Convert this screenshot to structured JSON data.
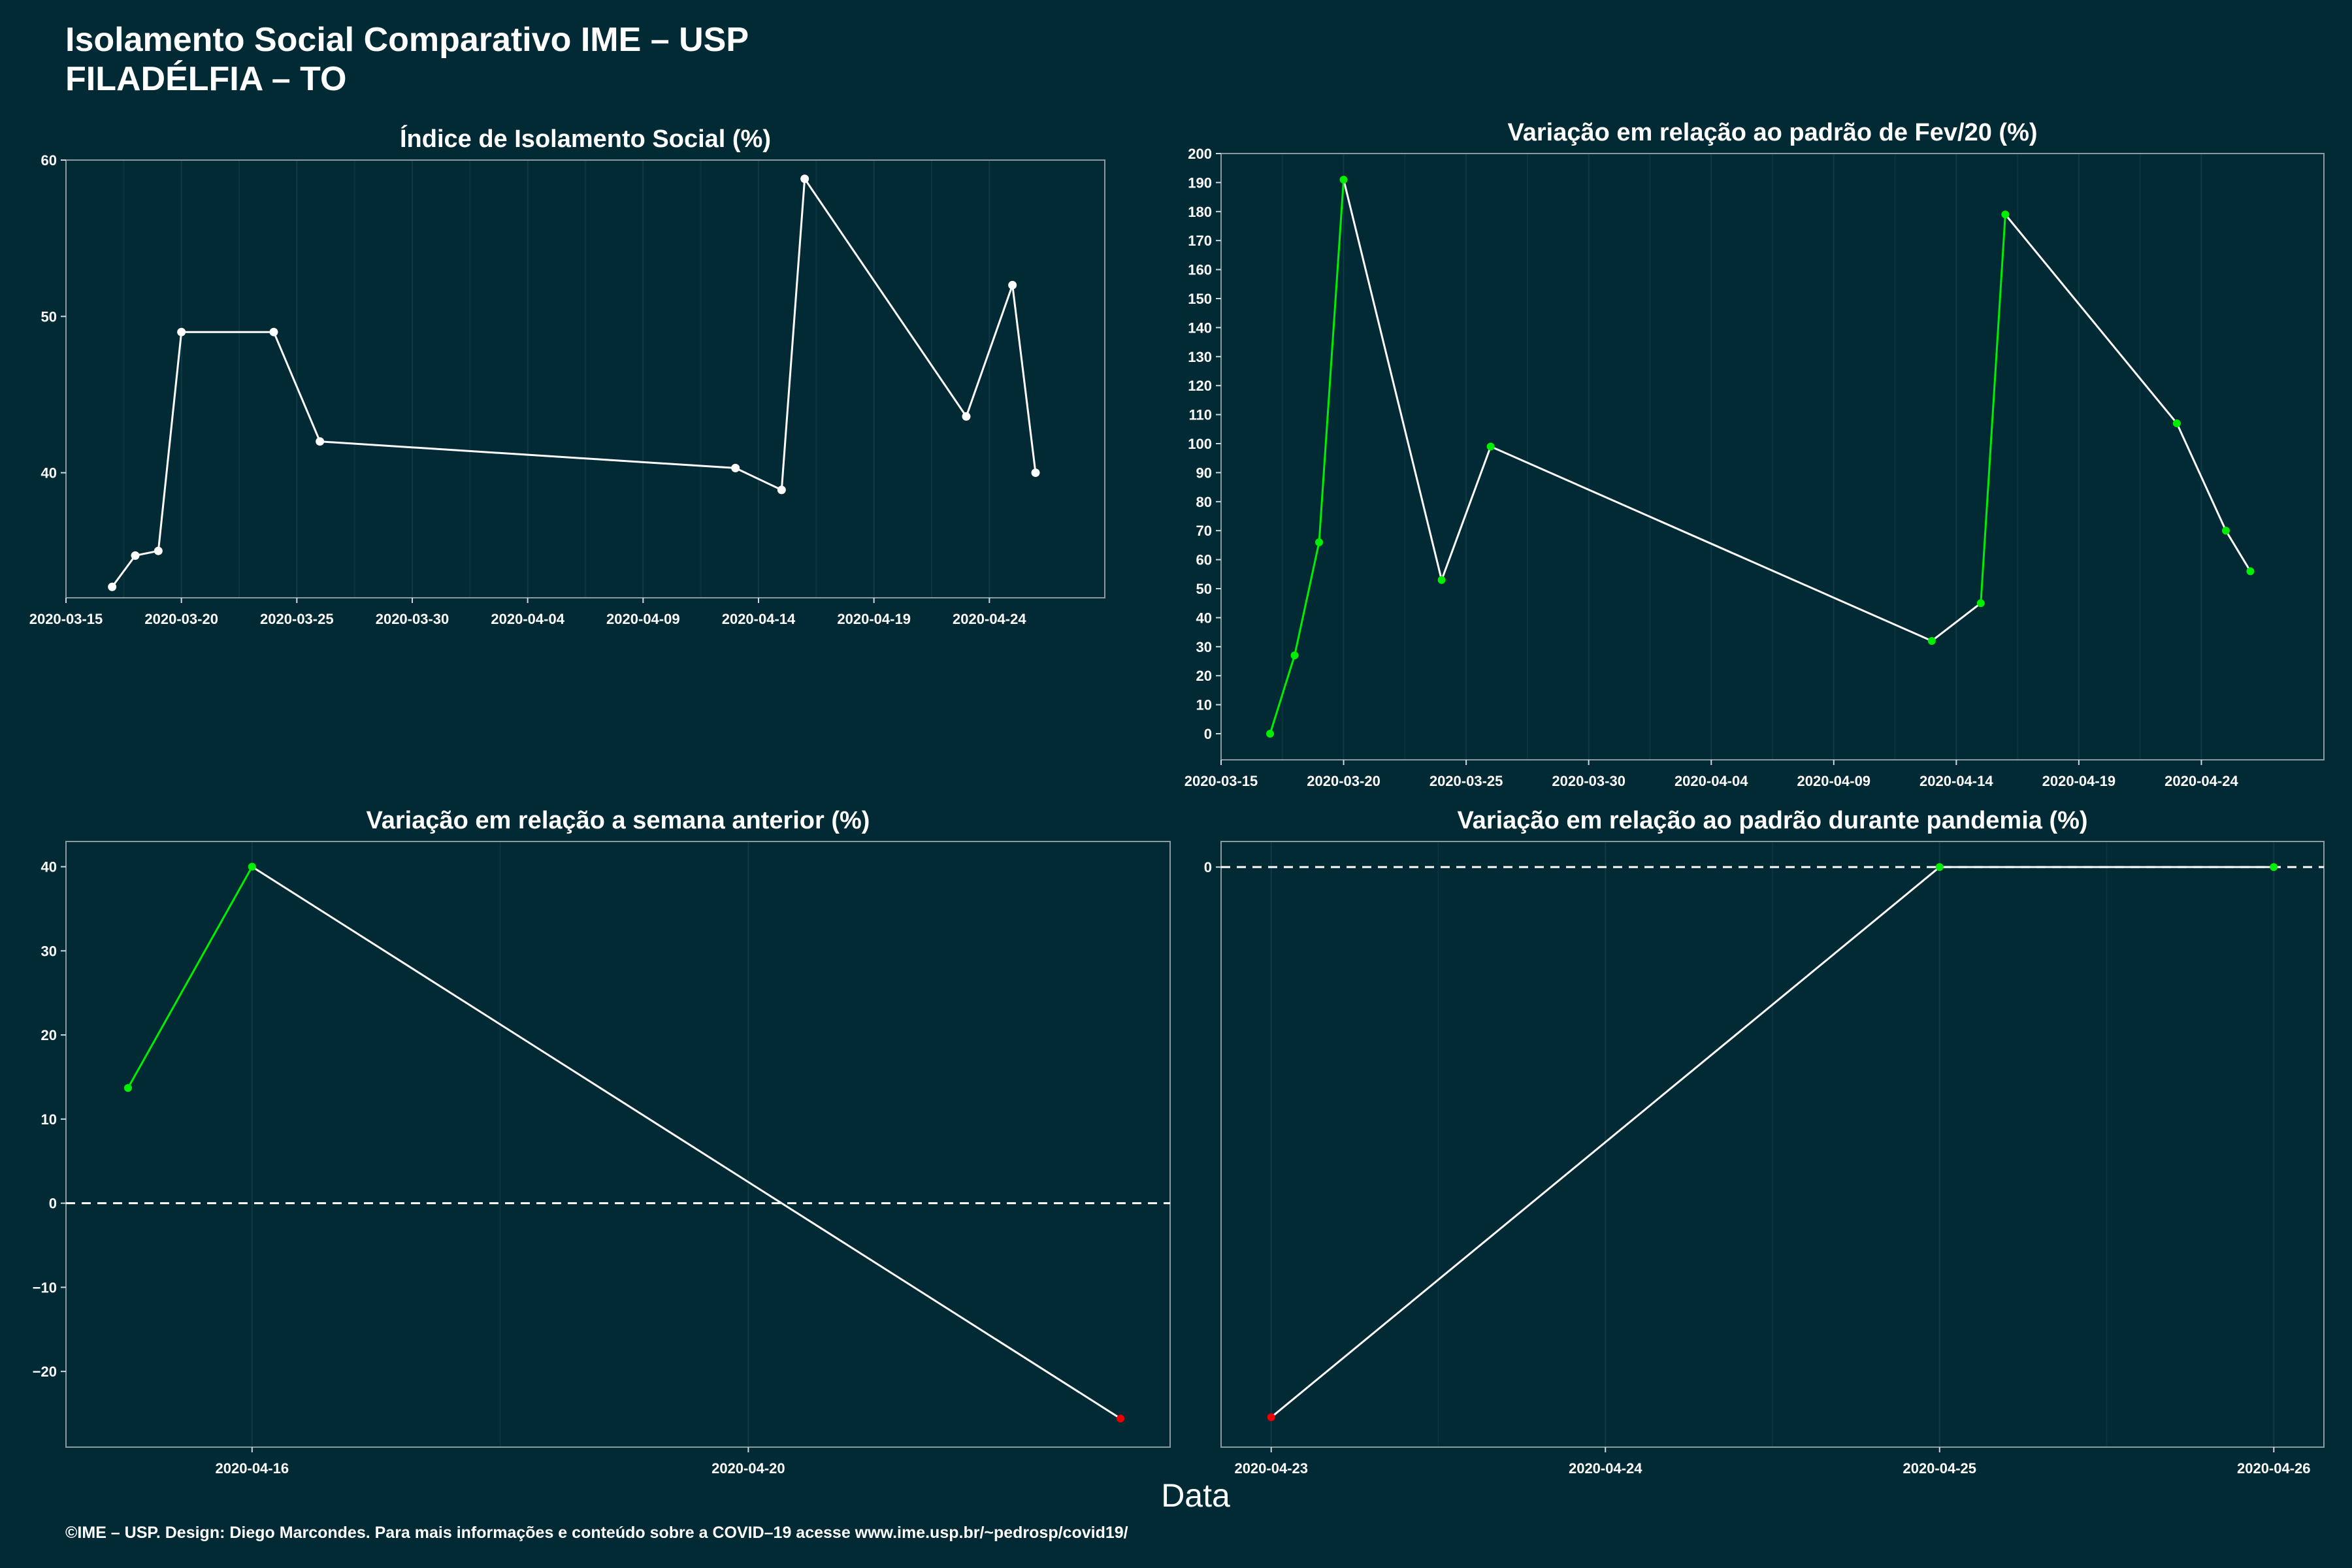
{
  "title_line1": "Isolamento Social Comparativo IME – USP",
  "title_line2": "FILADÉLFIA – TO",
  "x_axis_label": "Data",
  "footer": "©IME – USP. Design: Diego Marcondes. Para mais informações e conteúdo sobre a COVID–19 acesse www.ime.usp.br/~pedrosp/covid19/",
  "colors": {
    "background": "#022a35",
    "line": "#ffffff",
    "point_default": "#ffffff",
    "point_up": "#00ee00",
    "point_down": "#ee0000",
    "segment_up": "#00ee00",
    "grid": "#0d3a45",
    "frame": "#8a9aa0"
  },
  "chart_data": [
    {
      "id": "isolamento",
      "type": "line",
      "title": "Índice de Isolamento Social (%)",
      "x_type": "date",
      "xlim": [
        "2020-03-15",
        "2020-04-29"
      ],
      "ylim": [
        32,
        60
      ],
      "yticks": [
        40,
        50,
        60
      ],
      "xticks": [
        "2020-03-15",
        "2020-03-20",
        "2020-03-25",
        "2020-03-30",
        "2020-04-04",
        "2020-04-09",
        "2020-04-14",
        "2020-04-19",
        "2020-04-24"
      ],
      "hline": null,
      "colored": false,
      "points": [
        {
          "x": "2020-03-17",
          "y": 32.7
        },
        {
          "x": "2020-03-18",
          "y": 34.7
        },
        {
          "x": "2020-03-19",
          "y": 35.0
        },
        {
          "x": "2020-03-20",
          "y": 49.0
        },
        {
          "x": "2020-03-24",
          "y": 49.0
        },
        {
          "x": "2020-03-26",
          "y": 42.0
        },
        {
          "x": "2020-04-13",
          "y": 40.3
        },
        {
          "x": "2020-04-15",
          "y": 38.9
        },
        {
          "x": "2020-04-16",
          "y": 58.8
        },
        {
          "x": "2020-04-23",
          "y": 43.6
        },
        {
          "x": "2020-04-25",
          "y": 52.0
        },
        {
          "x": "2020-04-26",
          "y": 40.0
        }
      ]
    },
    {
      "id": "fev20",
      "type": "line",
      "title": "Variação em relação ao padrão de Fev/20 (%)",
      "x_type": "date",
      "xlim": [
        "2020-03-15",
        "2020-04-29"
      ],
      "ylim": [
        -9,
        200
      ],
      "yticks": [
        0,
        10,
        20,
        30,
        40,
        50,
        60,
        70,
        80,
        90,
        100,
        110,
        120,
        130,
        140,
        150,
        160,
        170,
        180,
        190,
        200
      ],
      "xticks": [
        "2020-03-15",
        "2020-03-20",
        "2020-03-25",
        "2020-03-30",
        "2020-04-04",
        "2020-04-09",
        "2020-04-14",
        "2020-04-19",
        "2020-04-24"
      ],
      "hline": null,
      "colored": true,
      "points": [
        {
          "x": "2020-03-17",
          "y": 0
        },
        {
          "x": "2020-03-18",
          "y": 27
        },
        {
          "x": "2020-03-19",
          "y": 66
        },
        {
          "x": "2020-03-20",
          "y": 191
        },
        {
          "x": "2020-03-24",
          "y": 53
        },
        {
          "x": "2020-03-26",
          "y": 99
        },
        {
          "x": "2020-04-13",
          "y": 32
        },
        {
          "x": "2020-04-15",
          "y": 45
        },
        {
          "x": "2020-04-16",
          "y": 179
        },
        {
          "x": "2020-04-23",
          "y": 107
        },
        {
          "x": "2020-04-25",
          "y": 70
        },
        {
          "x": "2020-04-26",
          "y": 56
        }
      ]
    },
    {
      "id": "semana",
      "type": "line",
      "title": "Variação em relação a semana anterior (%)",
      "x_type": "date",
      "xlim": [
        "2020-04-14.5",
        "2020-04-23.4"
      ],
      "ylim": [
        -29,
        43
      ],
      "yticks": [
        -20,
        -10,
        0,
        10,
        20,
        30,
        40
      ],
      "xticks": [
        "2020-04-16",
        "2020-04-20"
      ],
      "hline": 0,
      "colored": true,
      "points": [
        {
          "x": "2020-04-15",
          "y": 13.7
        },
        {
          "x": "2020-04-16",
          "y": 40.0
        },
        {
          "x": "2020-04-23",
          "y": -25.6
        }
      ]
    },
    {
      "id": "pandemia",
      "type": "line",
      "title": "Variação em relação ao padrão durante pandemia (%)",
      "x_type": "date",
      "xlim": [
        "2020-04-22.85",
        "2020-04-26.15"
      ],
      "ylim": [
        -68,
        3
      ],
      "yticks": [
        0
      ],
      "xticks": [
        "2020-04-23",
        "2020-04-24",
        "2020-04-25",
        "2020-04-26"
      ],
      "hline": 0,
      "colored": true,
      "points": [
        {
          "x": "2020-04-23",
          "y": -64.5
        },
        {
          "x": "2020-04-25",
          "y": 0
        },
        {
          "x": "2020-04-26",
          "y": 0
        }
      ]
    }
  ]
}
